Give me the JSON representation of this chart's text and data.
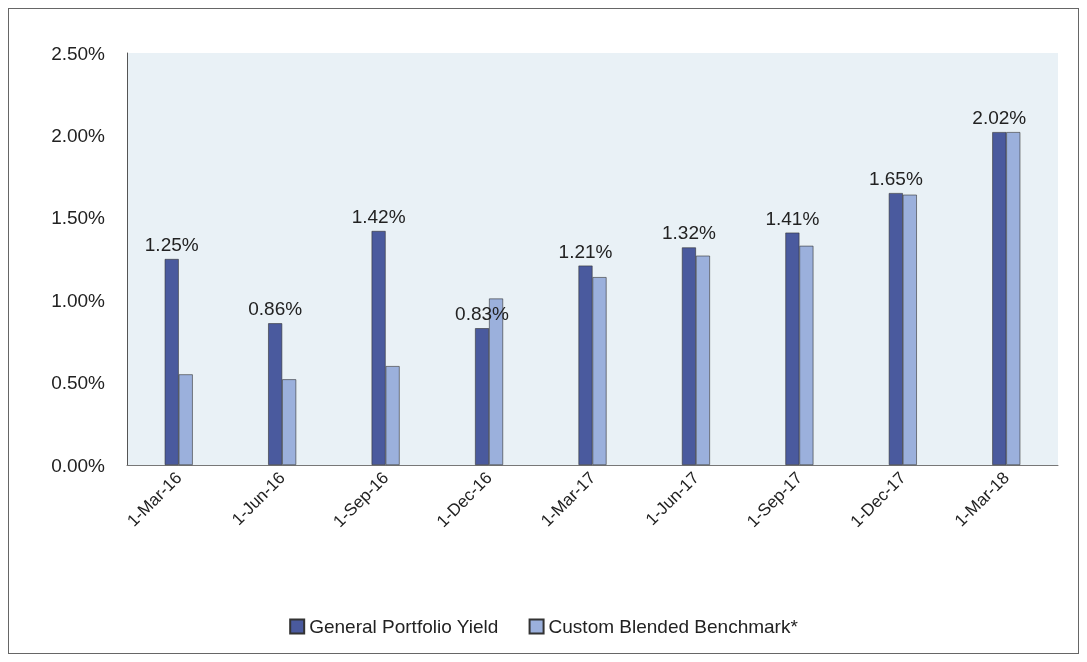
{
  "chart_data": {
    "type": "bar",
    "categories": [
      "1-Mar-16",
      "1-Jun-16",
      "1-Sep-16",
      "1-Dec-16",
      "1-Mar-17",
      "1-Jun-17",
      "1-Sep-17",
      "1-Dec-17",
      "1-Mar-18"
    ],
    "series": [
      {
        "name": "General Portfolio Yield",
        "color": "#4a5a9e",
        "values": [
          1.25,
          0.86,
          1.42,
          0.83,
          1.21,
          1.32,
          1.41,
          1.65,
          2.02
        ],
        "value_labels": [
          "1.25%",
          "0.86%",
          "1.42%",
          "0.83%",
          "1.21%",
          "1.32%",
          "1.41%",
          "1.65%",
          "2.02%"
        ]
      },
      {
        "name": "Custom Blended Benchmark*",
        "color": "#9bb0dc",
        "values": [
          0.55,
          0.52,
          0.6,
          1.01,
          1.14,
          1.27,
          1.33,
          1.64,
          2.02
        ]
      }
    ],
    "ylim": [
      0,
      2.5
    ],
    "yticks": [
      {
        "value": 0,
        "label": "0.00%"
      },
      {
        "value": 0.5,
        "label": "0.50%"
      },
      {
        "value": 1,
        "label": "1.00%"
      },
      {
        "value": 1.5,
        "label": "1.50%"
      },
      {
        "value": 2,
        "label": "2.00%"
      },
      {
        "value": 2.5,
        "label": "2.50%"
      }
    ],
    "grid": false,
    "legend": "bottom"
  }
}
